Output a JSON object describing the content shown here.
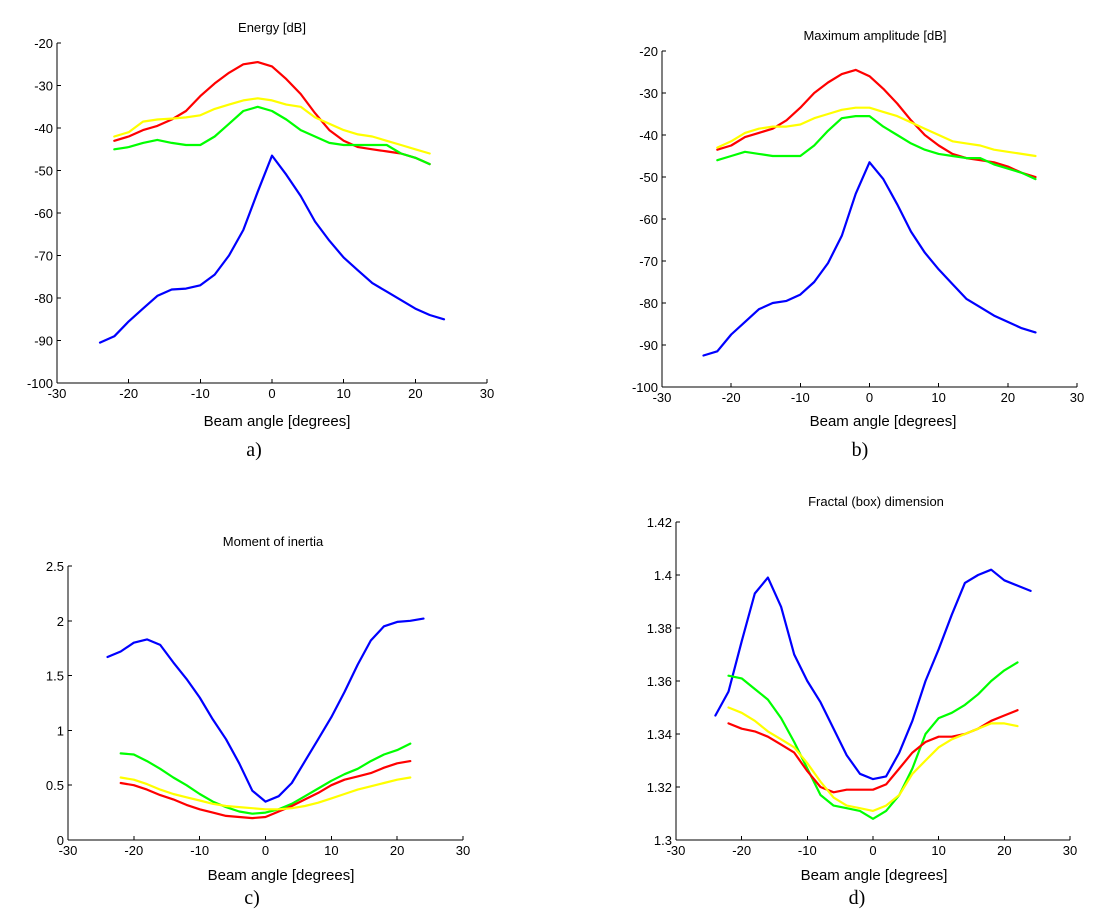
{
  "chart_data": [
    {
      "type": "line",
      "title": "Energy [dB]",
      "xlabel": "Beam angle [degrees]",
      "ylabel": "",
      "caption": "a)",
      "xlim": [
        -30,
        30
      ],
      "ylim": [
        -100,
        -20
      ],
      "xticks": [
        "-30",
        "-20",
        "-10",
        "0",
        "10",
        "20",
        "30"
      ],
      "yticks": [
        "-20",
        "-30",
        "-40",
        "-50",
        "-60",
        "-70",
        "-80",
        "-90",
        "-100"
      ],
      "x": [
        -24,
        -22,
        -20,
        -18,
        -16,
        -14,
        -12,
        -10,
        -8,
        -6,
        -4,
        -2,
        0,
        2,
        4,
        6,
        8,
        10,
        12,
        14,
        16,
        18,
        20,
        22,
        24
      ],
      "series": [
        {
          "color": "#0000ff",
          "values": [
            -90.5,
            -89,
            -85.5,
            -82.5,
            -79.5,
            -78,
            -77.8,
            -77,
            -74.5,
            -70,
            -64,
            -55,
            -46.5,
            -51,
            -56,
            -62,
            -66.5,
            -70.5,
            -73.5,
            -76.5,
            -78.5,
            -80.5,
            -82.5,
            -84,
            -85
          ]
        },
        {
          "color": "#ff0000",
          "values": [
            null,
            -43,
            -42,
            -40.5,
            -39.5,
            -38,
            -36,
            -32.5,
            -29.5,
            -27,
            -25,
            -24.5,
            -25.5,
            -28.5,
            -32,
            -36.5,
            -40.5,
            -43,
            -44.5,
            -45,
            -45.5,
            -46,
            -47,
            -48.5,
            null
          ]
        },
        {
          "color": "#ffff00",
          "values": [
            null,
            -42,
            -41,
            -38.5,
            -38,
            -37.8,
            -37.5,
            -37,
            -35.5,
            -34.5,
            -33.5,
            -33,
            -33.5,
            -34.5,
            -35,
            -37.5,
            -39,
            -40.5,
            -41.5,
            -42,
            -43,
            -44,
            -45,
            -46,
            null
          ]
        },
        {
          "color": "#00ff00",
          "values": [
            null,
            -45,
            -44.5,
            -43.5,
            -42.8,
            -43.5,
            -44,
            -44,
            -42,
            -39,
            -36,
            -35,
            -36,
            -38,
            -40.5,
            -42,
            -43.5,
            -44,
            -44,
            -44,
            -44,
            -46,
            -47,
            -48.5,
            null
          ]
        }
      ]
    },
    {
      "type": "line",
      "title": "Maximum amplitude [dB]",
      "xlabel": "Beam angle [degrees]",
      "ylabel": "",
      "caption": "b)",
      "xlim": [
        -30,
        30
      ],
      "ylim": [
        -100,
        -20
      ],
      "xticks": [
        "-30",
        "-20",
        "-10",
        "0",
        "10",
        "20",
        "30"
      ],
      "yticks": [
        "-20",
        "-30",
        "-40",
        "-50",
        "-60",
        "-70",
        "-80",
        "-90",
        "-100"
      ],
      "x": [
        -24,
        -22,
        -20,
        -18,
        -16,
        -14,
        -12,
        -10,
        -8,
        -6,
        -4,
        -2,
        0,
        2,
        4,
        6,
        8,
        10,
        12,
        14,
        16,
        18,
        20,
        22,
        24
      ],
      "series": [
        {
          "color": "#0000ff",
          "values": [
            -92.5,
            -91.5,
            -87.5,
            -84.5,
            -81.5,
            -80,
            -79.5,
            -78,
            -75,
            -70.5,
            -64,
            -54,
            -46.5,
            -50.5,
            -56.5,
            -63,
            -68,
            -72,
            -75.5,
            -79,
            -81,
            -83,
            -84.5,
            -86,
            -87
          ]
        },
        {
          "color": "#ff0000",
          "values": [
            null,
            -43.5,
            -42.5,
            -40.5,
            -39.5,
            -38.5,
            -36.5,
            -33.5,
            -30,
            -27.5,
            -25.5,
            -24.5,
            -26,
            -29,
            -32.5,
            -36.5,
            -40,
            -42.5,
            -44.5,
            -45.5,
            -46,
            -46.5,
            -47.5,
            -49,
            -50
          ]
        },
        {
          "color": "#ffff00",
          "values": [
            null,
            -43,
            -41.5,
            -39.5,
            -38.5,
            -38,
            -38,
            -37.5,
            -36,
            -35,
            -34,
            -33.5,
            -33.5,
            -34.5,
            -35.5,
            -37,
            -38.5,
            -40,
            -41.5,
            -42,
            -42.5,
            -43.5,
            -44,
            -44.5,
            -45
          ]
        },
        {
          "color": "#00ff00",
          "values": [
            null,
            -46,
            -45,
            -44,
            -44.5,
            -45,
            -45,
            -45,
            -42.5,
            -39,
            -36,
            -35.5,
            -35.5,
            -38,
            -40,
            -42,
            -43.5,
            -44.5,
            -45,
            -45.5,
            -45.5,
            -47,
            -48,
            -49,
            -50.5
          ]
        }
      ]
    },
    {
      "type": "line",
      "title": "Moment of inertia",
      "xlabel": "Beam angle [degrees]",
      "ylabel": "",
      "caption": "c)",
      "xlim": [
        -30,
        30
      ],
      "ylim": [
        0,
        2.5
      ],
      "xticks": [
        "-30",
        "-20",
        "-10",
        "0",
        "10",
        "20",
        "30"
      ],
      "yticks": [
        "0",
        "0.5",
        "1",
        "1.5",
        "2",
        "2.5"
      ],
      "x": [
        -24,
        -22,
        -20,
        -18,
        -16,
        -14,
        -12,
        -10,
        -8,
        -6,
        -4,
        -2,
        0,
        2,
        4,
        6,
        8,
        10,
        12,
        14,
        16,
        18,
        20,
        22,
        24
      ],
      "series": [
        {
          "color": "#0000ff",
          "values": [
            1.67,
            1.72,
            1.8,
            1.83,
            1.78,
            1.62,
            1.47,
            1.3,
            1.1,
            0.92,
            0.7,
            0.45,
            0.35,
            0.4,
            0.52,
            0.72,
            0.92,
            1.12,
            1.35,
            1.6,
            1.82,
            1.95,
            1.99,
            2.0,
            2.02
          ]
        },
        {
          "color": "#00ff00",
          "values": [
            null,
            0.79,
            0.78,
            0.72,
            0.65,
            0.57,
            0.5,
            0.42,
            0.35,
            0.3,
            0.26,
            0.24,
            0.25,
            0.28,
            0.33,
            0.4,
            0.47,
            0.54,
            0.6,
            0.65,
            0.72,
            0.78,
            0.82,
            0.88,
            null
          ]
        },
        {
          "color": "#ff0000",
          "values": [
            null,
            0.52,
            0.5,
            0.46,
            0.41,
            0.37,
            0.32,
            0.28,
            0.25,
            0.22,
            0.21,
            0.2,
            0.21,
            0.26,
            0.31,
            0.37,
            0.43,
            0.5,
            0.55,
            0.58,
            0.61,
            0.66,
            0.7,
            0.72,
            null
          ]
        },
        {
          "color": "#ffff00",
          "values": [
            null,
            0.57,
            0.55,
            0.51,
            0.46,
            0.42,
            0.39,
            0.36,
            0.33,
            0.31,
            0.3,
            0.29,
            0.28,
            0.28,
            0.29,
            0.31,
            0.34,
            0.38,
            0.42,
            0.46,
            0.49,
            0.52,
            0.55,
            0.57,
            null
          ]
        }
      ]
    },
    {
      "type": "line",
      "title": "Fractal (box) dimension",
      "xlabel": "Beam angle [degrees]",
      "ylabel": "",
      "caption": "d)",
      "xlim": [
        -30,
        30
      ],
      "ylim": [
        1.3,
        1.42
      ],
      "xticks": [
        "-30",
        "-20",
        "-10",
        "0",
        "10",
        "20",
        "30"
      ],
      "yticks": [
        "1.42",
        "1.4",
        "1.38",
        "1.36",
        "1.34",
        "1.32",
        "1.3"
      ],
      "x": [
        -24,
        -22,
        -20,
        -18,
        -16,
        -14,
        -12,
        -10,
        -8,
        -6,
        -4,
        -2,
        0,
        2,
        4,
        6,
        8,
        10,
        12,
        14,
        16,
        18,
        20,
        22,
        24
      ],
      "series": [
        {
          "color": "#0000ff",
          "values": [
            1.347,
            1.356,
            1.375,
            1.393,
            1.399,
            1.388,
            1.37,
            1.36,
            1.352,
            1.342,
            1.332,
            1.325,
            1.323,
            1.324,
            1.333,
            1.345,
            1.36,
            1.372,
            1.385,
            1.397,
            1.4,
            1.402,
            1.398,
            1.396,
            1.394
          ]
        },
        {
          "color": "#00ff00",
          "values": [
            null,
            1.362,
            1.361,
            1.357,
            1.353,
            1.346,
            1.337,
            1.327,
            1.317,
            1.313,
            1.312,
            1.311,
            1.308,
            1.311,
            1.317,
            1.327,
            1.34,
            1.346,
            1.348,
            1.351,
            1.355,
            1.36,
            1.364,
            1.367,
            null
          ]
        },
        {
          "color": "#ff0000",
          "values": [
            null,
            1.344,
            1.342,
            1.341,
            1.339,
            1.336,
            1.333,
            1.326,
            1.32,
            1.318,
            1.319,
            1.319,
            1.319,
            1.321,
            1.327,
            1.333,
            1.337,
            1.339,
            1.339,
            1.34,
            1.342,
            1.345,
            1.347,
            1.349,
            null
          ]
        },
        {
          "color": "#ffff00",
          "values": [
            null,
            1.35,
            1.348,
            1.345,
            1.341,
            1.338,
            1.335,
            1.329,
            1.322,
            1.316,
            1.313,
            1.312,
            1.311,
            1.313,
            1.317,
            1.325,
            1.33,
            1.335,
            1.338,
            1.34,
            1.342,
            1.344,
            1.344,
            1.343,
            null
          ]
        }
      ]
    }
  ]
}
